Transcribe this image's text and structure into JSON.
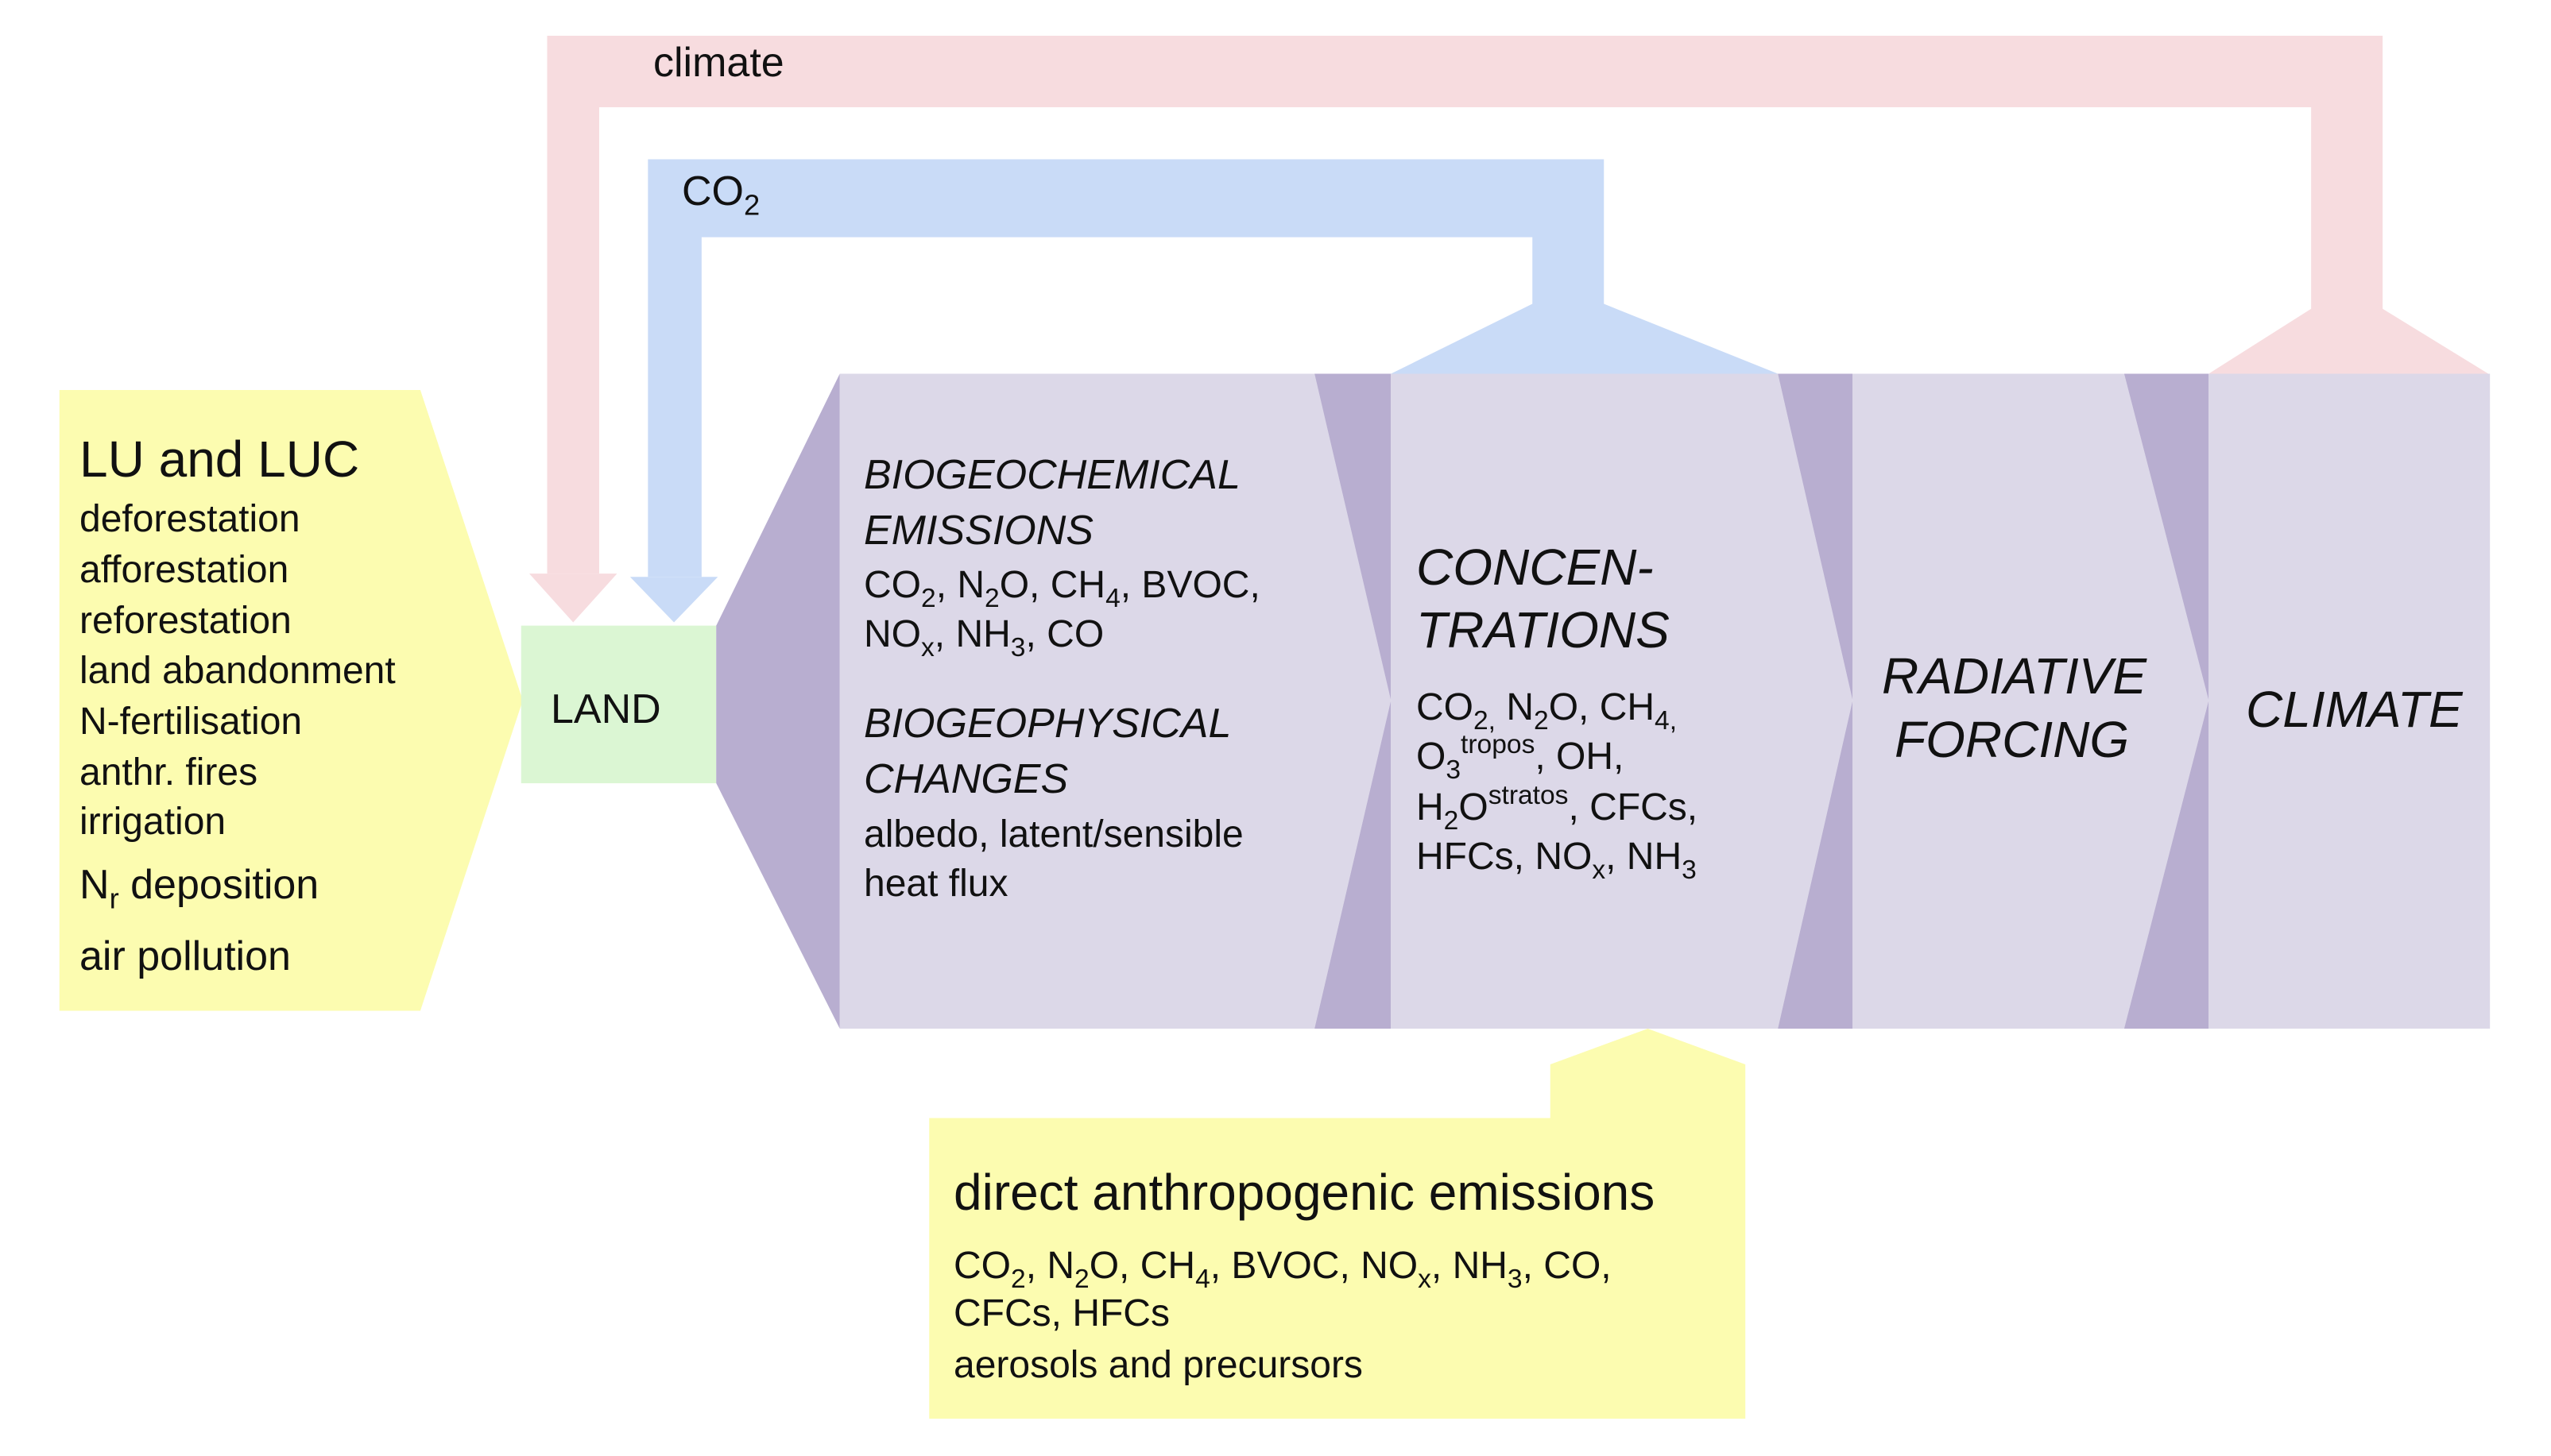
{
  "colors": {
    "climate_loop": "#f7dcdf",
    "co2_loop": "#c9dbf7",
    "driver_box": "#fcfcb0",
    "land_box": "#dbf6d3",
    "stage_box": "#dcd8e8",
    "stage_connector": "#b8aed0"
  },
  "loops": {
    "climate_label": "climate",
    "co2_label": "CO",
    "co2_sub": "2"
  },
  "drivers": {
    "title": "LU and LUC",
    "items": [
      "deforestation",
      "afforestation",
      "reforestation",
      "land abandonment",
      "N-fertilisation",
      "anthr. fires",
      "irrigation"
    ],
    "nr_main": "N",
    "nr_sub": "r",
    "nr_rest": " deposition",
    "air_pollution": "air pollution"
  },
  "land": {
    "label": "LAND"
  },
  "emissions": {
    "bgc_title_1": "BIOGEOCHEMICAL",
    "bgc_title_2": "EMISSIONS",
    "bgp_title_1": "BIOGEOPHYSICAL",
    "bgp_title_2": "CHANGES",
    "bgp_items_1": "albedo, latent/sensible",
    "bgp_items_2": "heat flux"
  },
  "concentrations": {
    "title_1": "CONCEN-",
    "title_2": "TRATIONS"
  },
  "forcing": {
    "title_1": "RADIATIVE",
    "title_2": "FORCING"
  },
  "climate": {
    "title": "CLIMATE"
  },
  "direct": {
    "title": "direct anthropogenic emissions",
    "line_3": "aerosols and precursors"
  }
}
